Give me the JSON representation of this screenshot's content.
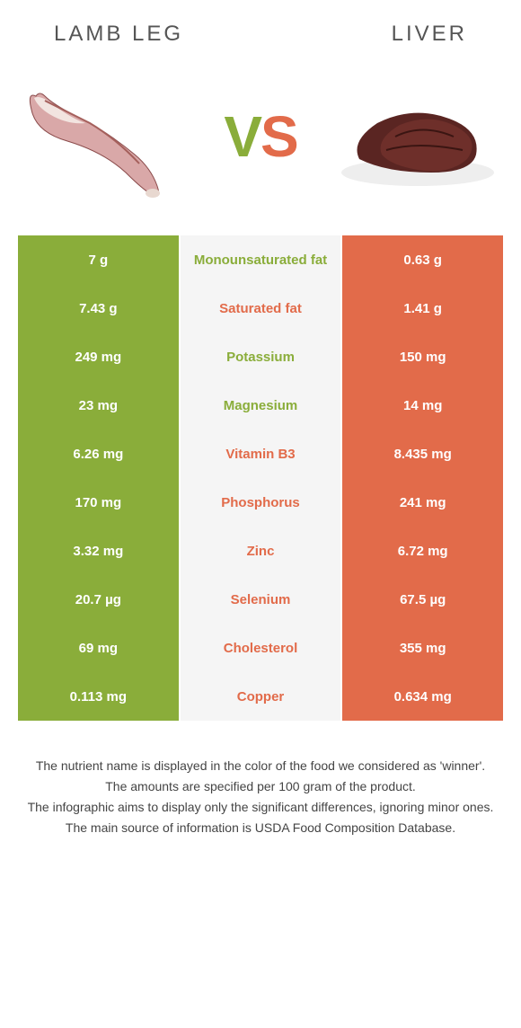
{
  "header": {
    "left_title": "LAMB LEG",
    "right_title": "LIVER"
  },
  "vs": {
    "v": "V",
    "s": "S"
  },
  "colors": {
    "left": "#8aad3a",
    "right": "#e26b4a",
    "mid_bg": "#f5f5f5",
    "page_bg": "#ffffff",
    "text": "#4a4a4a"
  },
  "table": {
    "rows": [
      {
        "left": "7 g",
        "label": "Monounsaturated fat",
        "right": "0.63 g",
        "winner": "left"
      },
      {
        "left": "7.43 g",
        "label": "Saturated fat",
        "right": "1.41 g",
        "winner": "right"
      },
      {
        "left": "249 mg",
        "label": "Potassium",
        "right": "150 mg",
        "winner": "left"
      },
      {
        "left": "23 mg",
        "label": "Magnesium",
        "right": "14 mg",
        "winner": "left"
      },
      {
        "left": "6.26 mg",
        "label": "Vitamin B3",
        "right": "8.435 mg",
        "winner": "right"
      },
      {
        "left": "170 mg",
        "label": "Phosphorus",
        "right": "241 mg",
        "winner": "right"
      },
      {
        "left": "3.32 mg",
        "label": "Zinc",
        "right": "6.72 mg",
        "winner": "right"
      },
      {
        "left": "20.7 µg",
        "label": "Selenium",
        "right": "67.5 µg",
        "winner": "right"
      },
      {
        "left": "69 mg",
        "label": "Cholesterol",
        "right": "355 mg",
        "winner": "right"
      },
      {
        "left": "0.113 mg",
        "label": "Copper",
        "right": "0.634 mg",
        "winner": "right"
      }
    ]
  },
  "footnotes": [
    "The nutrient name is displayed in the color of the food we considered as 'winner'.",
    "The amounts are specified per 100 gram of the product.",
    "The infographic aims to display only the significant differences, ignoring minor ones.",
    "The main source of information is USDA Food Composition Database."
  ]
}
